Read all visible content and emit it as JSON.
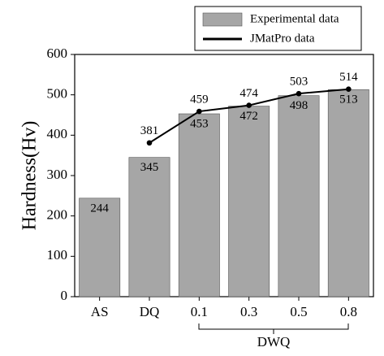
{
  "chart_data": {
    "type": "bar",
    "y_label": "Hardness(Hv)",
    "categories": [
      "AS",
      "DQ",
      "0.1",
      "0.3",
      "0.5",
      "0.8"
    ],
    "group_label": "DWQ",
    "series": [
      {
        "name": "Experimental data",
        "type": "bar",
        "color": "#a6a6a6",
        "values": [
          244,
          345,
          453,
          472,
          498,
          513
        ]
      },
      {
        "name": "JMatPro data",
        "type": "line",
        "color": "#000000",
        "values": [
          null,
          381,
          459,
          474,
          503,
          514
        ]
      }
    ],
    "ylim": [
      0,
      600
    ],
    "yticks": [
      0,
      100,
      200,
      300,
      400,
      500,
      600
    ],
    "legend": "top-right"
  }
}
